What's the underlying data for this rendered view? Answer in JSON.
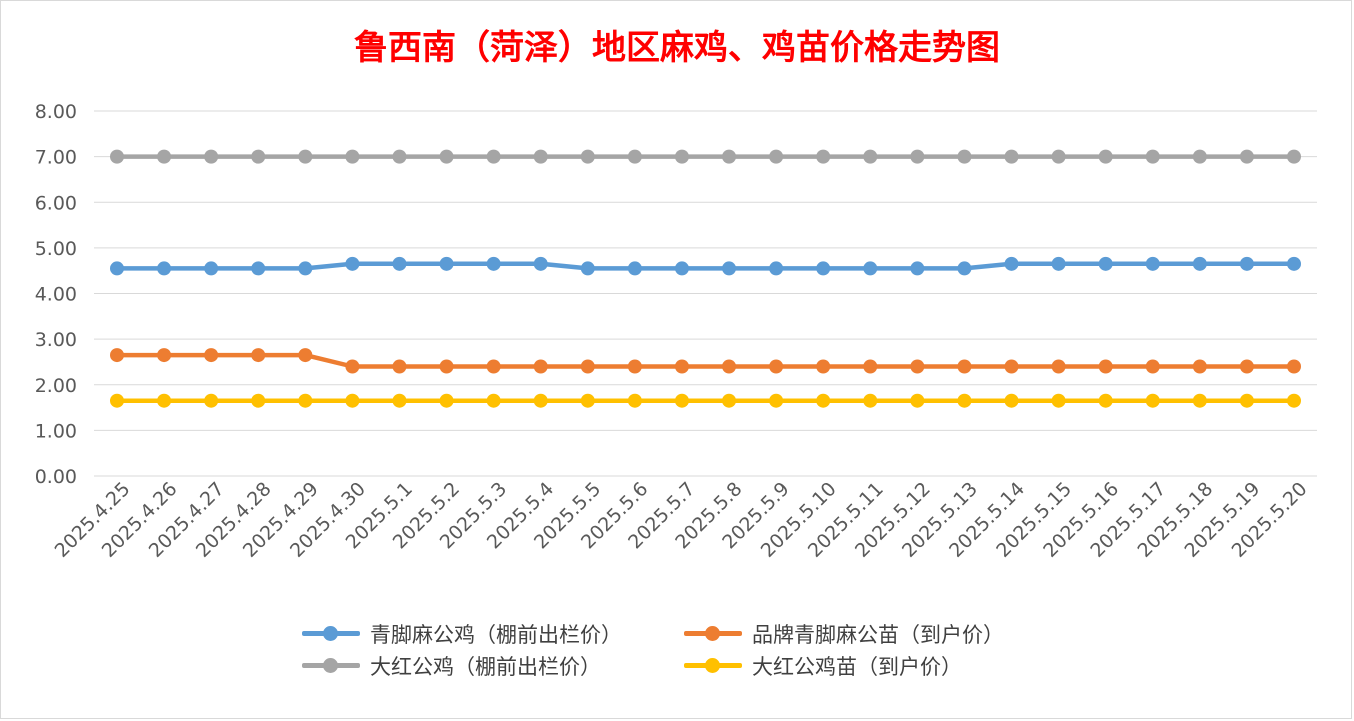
{
  "chart_data": {
    "type": "line",
    "title": "鲁西南（菏泽）地区麻鸡、鸡苗价格走势图",
    "title_color": "#ff0000",
    "xlabel": "",
    "ylabel": "",
    "ylim": [
      0,
      8
    ],
    "y_ticks": [
      "0.00",
      "1.00",
      "2.00",
      "3.00",
      "4.00",
      "5.00",
      "6.00",
      "7.00",
      "8.00"
    ],
    "grid": true,
    "legend_position": "bottom",
    "categories": [
      "2025.4.25",
      "2025.4.26",
      "2025.4.27",
      "2025.4.28",
      "2025.4.29",
      "2025.4.30",
      "2025.5.1",
      "2025.5.2",
      "2025.5.3",
      "2025.5.4",
      "2025.5.5",
      "2025.5.6",
      "2025.5.7",
      "2025.5.8",
      "2025.5.9",
      "2025.5.10",
      "2025.5.11",
      "2025.5.12",
      "2025.5.13",
      "2025.5.14",
      "2025.5.15",
      "2025.5.16",
      "2025.5.17",
      "2025.5.18",
      "2025.5.19",
      "2025.5.20"
    ],
    "series": [
      {
        "name": "青脚麻公鸡（棚前出栏价）",
        "color": "#5b9bd5",
        "values": [
          4.55,
          4.55,
          4.55,
          4.55,
          4.55,
          4.65,
          4.65,
          4.65,
          4.65,
          4.65,
          4.55,
          4.55,
          4.55,
          4.55,
          4.55,
          4.55,
          4.55,
          4.55,
          4.55,
          4.65,
          4.65,
          4.65,
          4.65,
          4.65,
          4.65,
          4.65
        ]
      },
      {
        "name": "品牌青脚麻公苗（到户价）",
        "color": "#ed7d31",
        "values": [
          2.65,
          2.65,
          2.65,
          2.65,
          2.65,
          2.4,
          2.4,
          2.4,
          2.4,
          2.4,
          2.4,
          2.4,
          2.4,
          2.4,
          2.4,
          2.4,
          2.4,
          2.4,
          2.4,
          2.4,
          2.4,
          2.4,
          2.4,
          2.4,
          2.4,
          2.4
        ]
      },
      {
        "name": "大红公鸡（棚前出栏价）",
        "color": "#a5a5a5",
        "values": [
          7.0,
          7.0,
          7.0,
          7.0,
          7.0,
          7.0,
          7.0,
          7.0,
          7.0,
          7.0,
          7.0,
          7.0,
          7.0,
          7.0,
          7.0,
          7.0,
          7.0,
          7.0,
          7.0,
          7.0,
          7.0,
          7.0,
          7.0,
          7.0,
          7.0,
          7.0
        ]
      },
      {
        "name": "大红公鸡苗（到户价）",
        "color": "#ffc000",
        "values": [
          1.65,
          1.65,
          1.65,
          1.65,
          1.65,
          1.65,
          1.65,
          1.65,
          1.65,
          1.65,
          1.65,
          1.65,
          1.65,
          1.65,
          1.65,
          1.65,
          1.65,
          1.65,
          1.65,
          1.65,
          1.65,
          1.65,
          1.65,
          1.65,
          1.65,
          1.65
        ]
      }
    ]
  }
}
